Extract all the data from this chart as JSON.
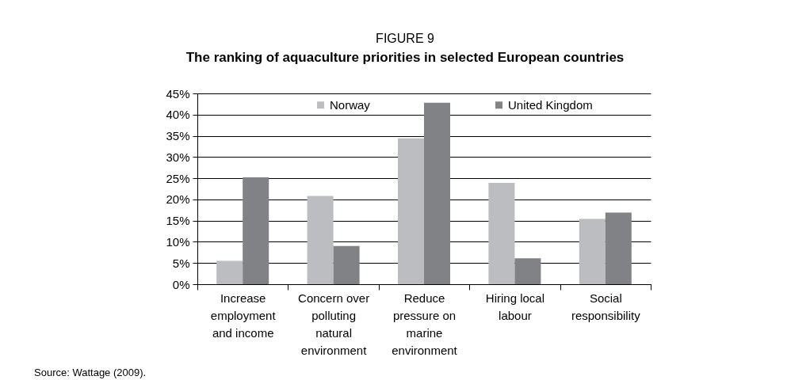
{
  "chart_data": {
    "type": "bar",
    "title": "FIGURE 9",
    "subtitle": "The ranking of aquaculture priorities in selected European countries",
    "categories": [
      "Increase employment and income",
      "Concern over polluting natural environment",
      "Reduce pressure on marine environment",
      "Hiring local labour",
      "Social responsibility"
    ],
    "series": [
      {
        "name": "Norway",
        "color": "#bcbdc0",
        "values": [
          5.5,
          20.8,
          34.4,
          23.9,
          15.4
        ]
      },
      {
        "name": "United Kingdom",
        "color": "#808285",
        "values": [
          25.2,
          9.0,
          42.8,
          6.1,
          16.9
        ]
      }
    ],
    "ylim": [
      0,
      45
    ],
    "yticks": [
      {
        "value": 0,
        "label": "0%"
      },
      {
        "value": 5,
        "label": "5%"
      },
      {
        "value": 10,
        "label": "10%"
      },
      {
        "value": 15,
        "label": "15%"
      },
      {
        "value": 20,
        "label": "20%"
      },
      {
        "value": 25,
        "label": "25%"
      },
      {
        "value": 30,
        "label": "30%"
      },
      {
        "value": 35,
        "label": "35%"
      },
      {
        "value": 40,
        "label": "40%"
      },
      {
        "value": 45,
        "label": "45%"
      }
    ],
    "grid": "y",
    "legend": "top",
    "annotations": [
      "Source: Wattage (2009)."
    ]
  }
}
